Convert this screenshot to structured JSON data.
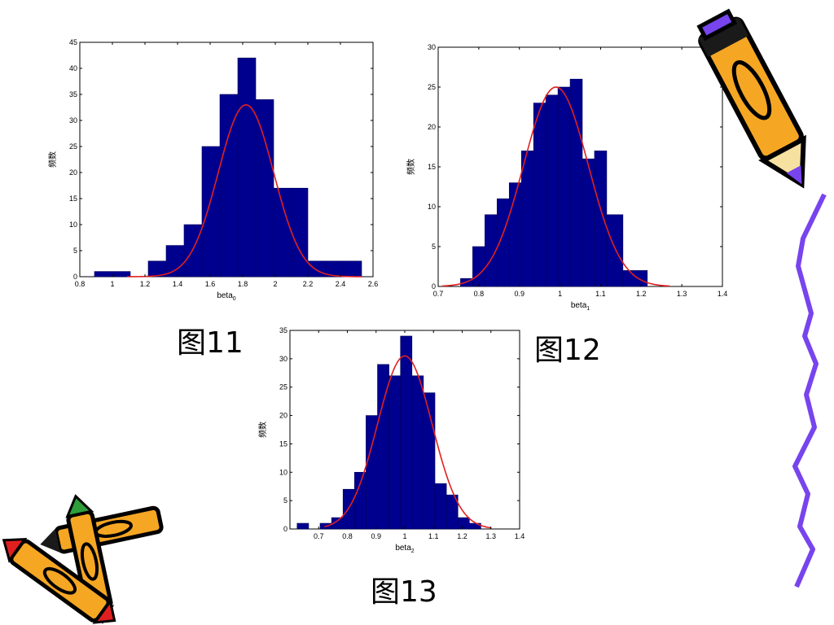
{
  "chart_data": [
    {
      "id": "fig11",
      "type": "bar",
      "ylabel": "频数",
      "xlabel_base": "beta",
      "xlabel_sub": "0",
      "xlim": [
        0.8,
        2.6
      ],
      "ylim": [
        0,
        45
      ],
      "xticks": [
        0.8,
        1,
        1.2,
        1.4,
        1.6,
        1.8,
        2,
        2.2,
        2.4,
        2.6
      ],
      "xtick_labels": [
        "0.8",
        "1",
        "1.2",
        "1.4",
        "1.6",
        "1.8",
        "2",
        "2.2",
        "2.4",
        "2.6"
      ],
      "yticks": [
        0,
        5,
        10,
        15,
        20,
        25,
        30,
        35,
        40,
        45
      ],
      "ytick_labels": [
        "0",
        "5",
        "10",
        "15",
        "20",
        "25",
        "30",
        "35",
        "40",
        "45"
      ],
      "bins": [
        {
          "x0": 0.89,
          "x1": 1.11,
          "count": 1
        },
        {
          "x0": 1.11,
          "x1": 1.22,
          "count": 0
        },
        {
          "x0": 1.22,
          "x1": 1.33,
          "count": 3
        },
        {
          "x0": 1.33,
          "x1": 1.44,
          "count": 6
        },
        {
          "x0": 1.44,
          "x1": 1.55,
          "count": 10
        },
        {
          "x0": 1.55,
          "x1": 1.66,
          "count": 25
        },
        {
          "x0": 1.66,
          "x1": 1.77,
          "count": 35
        },
        {
          "x0": 1.77,
          "x1": 1.88,
          "count": 42
        },
        {
          "x0": 1.88,
          "x1": 1.99,
          "count": 34
        },
        {
          "x0": 1.99,
          "x1": 2.1,
          "count": 17
        },
        {
          "x0": 2.1,
          "x1": 2.2,
          "count": 17
        },
        {
          "x0": 2.2,
          "x1": 2.31,
          "count": 3
        },
        {
          "x0": 2.31,
          "x1": 2.42,
          "count": 3
        },
        {
          "x0": 2.42,
          "x1": 2.53,
          "count": 3
        }
      ],
      "fit_curve": {
        "type": "normal",
        "mean": 1.82,
        "peak": 33,
        "sigma": 0.17,
        "x_range": [
          1.09,
          2.53
        ]
      }
    },
    {
      "id": "fig12",
      "type": "bar",
      "ylabel": "频数",
      "xlabel_base": "beta",
      "xlabel_sub": "1",
      "xlim": [
        0.7,
        1.4
      ],
      "ylim": [
        0,
        30
      ],
      "xticks": [
        0.7,
        0.8,
        0.9,
        1,
        1.1,
        1.2,
        1.3,
        1.4
      ],
      "xtick_labels": [
        "0.7",
        "0.8",
        "0.9",
        "1",
        "1.1",
        "1.2",
        "1.3",
        "1.4"
      ],
      "yticks": [
        0,
        5,
        10,
        15,
        20,
        25,
        30
      ],
      "ytick_labels": [
        "0",
        "5",
        "10",
        "15",
        "20",
        "25",
        "30"
      ],
      "bins": [
        {
          "x0": 0.755,
          "x1": 0.785,
          "count": 1
        },
        {
          "x0": 0.785,
          "x1": 0.815,
          "count": 5
        },
        {
          "x0": 0.815,
          "x1": 0.845,
          "count": 9
        },
        {
          "x0": 0.845,
          "x1": 0.875,
          "count": 11
        },
        {
          "x0": 0.875,
          "x1": 0.905,
          "count": 13
        },
        {
          "x0": 0.905,
          "x1": 0.935,
          "count": 17
        },
        {
          "x0": 0.935,
          "x1": 0.965,
          "count": 23
        },
        {
          "x0": 0.965,
          "x1": 0.995,
          "count": 24
        },
        {
          "x0": 0.995,
          "x1": 1.025,
          "count": 25
        },
        {
          "x0": 1.025,
          "x1": 1.055,
          "count": 26
        },
        {
          "x0": 1.055,
          "x1": 1.085,
          "count": 16
        },
        {
          "x0": 1.085,
          "x1": 1.115,
          "count": 17
        },
        {
          "x0": 1.115,
          "x1": 1.155,
          "count": 9
        },
        {
          "x0": 1.155,
          "x1": 1.215,
          "count": 2
        }
      ],
      "fit_curve": {
        "type": "normal",
        "mean": 0.99,
        "peak": 25,
        "sigma": 0.08,
        "x_range": [
          0.71,
          1.27
        ]
      }
    },
    {
      "id": "fig13",
      "type": "bar",
      "ylabel": "频数",
      "xlabel_base": "beta",
      "xlabel_sub": "2",
      "xlim": [
        0.6,
        1.4
      ],
      "ylim": [
        0,
        35
      ],
      "xticks": [
        0.6,
        0.7,
        0.8,
        0.9,
        1,
        1.1,
        1.2,
        1.3,
        1.4
      ],
      "xtick_labels": [
        "",
        "0.7",
        "0.8",
        "0.9",
        "1",
        "1.1",
        "1.2",
        "1.3",
        "1.4"
      ],
      "yticks": [
        0,
        5,
        10,
        15,
        20,
        25,
        30,
        35
      ],
      "ytick_labels": [
        "0",
        "5",
        "10",
        "15",
        "20",
        "25",
        "30",
        "35"
      ],
      "bins": [
        {
          "x0": 0.625,
          "x1": 0.665,
          "count": 1
        },
        {
          "x0": 0.665,
          "x1": 0.705,
          "count": 0
        },
        {
          "x0": 0.705,
          "x1": 0.745,
          "count": 1
        },
        {
          "x0": 0.745,
          "x1": 0.785,
          "count": 2
        },
        {
          "x0": 0.785,
          "x1": 0.825,
          "count": 7
        },
        {
          "x0": 0.825,
          "x1": 0.865,
          "count": 10
        },
        {
          "x0": 0.865,
          "x1": 0.905,
          "count": 20
        },
        {
          "x0": 0.905,
          "x1": 0.945,
          "count": 29
        },
        {
          "x0": 0.945,
          "x1": 0.985,
          "count": 27
        },
        {
          "x0": 0.985,
          "x1": 1.025,
          "count": 34
        },
        {
          "x0": 1.025,
          "x1": 1.065,
          "count": 27
        },
        {
          "x0": 1.065,
          "x1": 1.105,
          "count": 24
        },
        {
          "x0": 1.105,
          "x1": 1.145,
          "count": 8
        },
        {
          "x0": 1.145,
          "x1": 1.185,
          "count": 6
        },
        {
          "x0": 1.185,
          "x1": 1.225,
          "count": 2
        },
        {
          "x0": 1.225,
          "x1": 1.265,
          "count": 1
        }
      ],
      "fit_curve": {
        "type": "normal",
        "mean": 1.0,
        "peak": 30.5,
        "sigma": 0.095,
        "x_range": [
          0.72,
          1.3
        ]
      }
    }
  ],
  "captions": {
    "fig11": "图11",
    "fig12": "图12",
    "fig13": "图13"
  },
  "colors": {
    "bar_fill": "#00008f",
    "bar_edge": "#000055",
    "fit_curve": "#e02020",
    "axis": "#000000"
  },
  "decorations": {
    "pencil_icon": "pencil-icon",
    "crayons_icon": "crayons-icon",
    "zigzag_line_color": "#7744ee"
  }
}
